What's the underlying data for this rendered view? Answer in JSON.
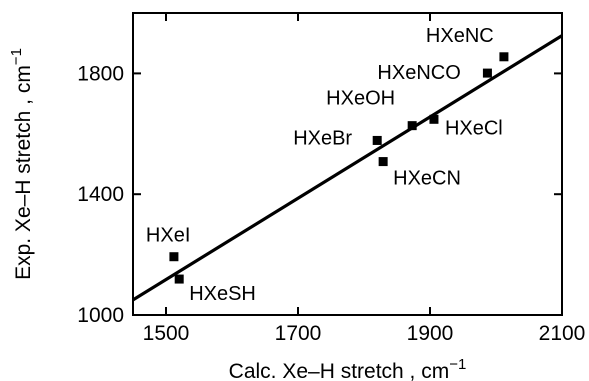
{
  "chart_data": {
    "type": "scatter",
    "title": "",
    "xlabel": "Calc. Xe–H stretch , cm",
    "xlabel_sup": "−1",
    "ylabel": "Exp.  Xe–H stretch , cm",
    "ylabel_sup": "−1",
    "xlim": [
      1450,
      2100
    ],
    "ylim": [
      1000,
      2000
    ],
    "x_ticks": [
      1500,
      1700,
      1900,
      2100
    ],
    "y_ticks": [
      1000,
      1400,
      1800
    ],
    "grid": false,
    "legend": "none",
    "points": [
      {
        "label": "HXeI",
        "x": 1512,
        "y": 1193
      },
      {
        "label": "HXeSH",
        "x": 1520,
        "y": 1119
      },
      {
        "label": "HXeBr",
        "x": 1820,
        "y": 1578
      },
      {
        "label": "HXeCN",
        "x": 1829,
        "y": 1508
      },
      {
        "label": "HXeOH",
        "x": 1873,
        "y": 1627
      },
      {
        "label": "HXeCl",
        "x": 1906,
        "y": 1648
      },
      {
        "label": "HXeNCO",
        "x": 1987,
        "y": 1801
      },
      {
        "label": "HXeNC",
        "x": 2012,
        "y": 1855
      }
    ],
    "fit_line": {
      "x": [
        1450,
        2100
      ],
      "y": [
        1050,
        1925
      ]
    },
    "colors": {
      "marker": "#000000",
      "line": "#000000",
      "axis": "#000000"
    }
  }
}
